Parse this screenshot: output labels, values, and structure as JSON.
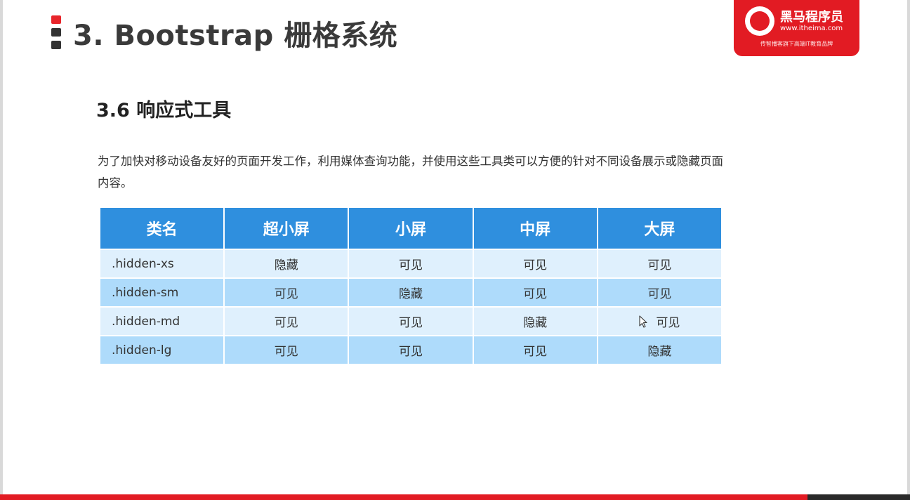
{
  "title": "3. Bootstrap 栅格系统",
  "logo": {
    "brand": "黑马程序员",
    "url": "www.itheima.com",
    "slogan": "传智播客旗下高端IT教育品牌"
  },
  "section_heading": "3.6 响应式工具",
  "intro_text": "为了加快对移动设备友好的页面开发工作，利用媒体查询功能，并使用这些工具类可以方便的针对不同设备展示或隐藏页面内容。",
  "table": {
    "headers": [
      "类名",
      "超小屏",
      "小屏",
      "中屏",
      "大屏"
    ],
    "rows": [
      [
        ".hidden-xs",
        "隐藏",
        "可见",
        "可见",
        "可见"
      ],
      [
        ".hidden-sm",
        "可见",
        "隐藏",
        "可见",
        "可见"
      ],
      [
        ".hidden-md",
        "可见",
        "可见",
        "隐藏",
        "可见"
      ],
      [
        ".hidden-lg",
        "可见",
        "可见",
        "可见",
        "隐藏"
      ]
    ]
  },
  "colors": {
    "brand_red": "#e21b23",
    "header_blue": "#2f8fde",
    "row_light": "#dff0fd",
    "row_dark": "#aedbfb"
  },
  "icons": {
    "cursor": "mouse-pointer-icon",
    "logo": "horse-logo-icon"
  }
}
